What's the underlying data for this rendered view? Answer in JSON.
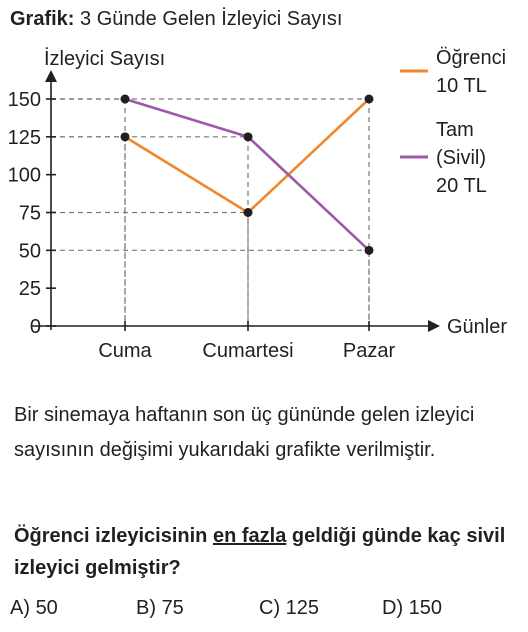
{
  "figure": {
    "title_prefix": "Grafik:",
    "title": "3 Günde Gelen İzleyici Sayısı"
  },
  "chart_data": {
    "type": "line",
    "ylabel": "İzleyici Sayısı",
    "xlabel": "Günler",
    "categories": [
      "Cuma",
      "Cumartesi",
      "Pazar"
    ],
    "yticks": [
      0,
      25,
      50,
      75,
      100,
      125,
      150
    ],
    "ylim": [
      0,
      150
    ],
    "grid": "dashed guide lines from points to axes",
    "legend_position": "right",
    "series": [
      {
        "name_lines": [
          "Öğrenci",
          "10 TL"
        ],
        "color": "#f0872a",
        "values": [
          125,
          75,
          150
        ]
      },
      {
        "name_lines": [
          "Tam",
          "(Sivil)",
          "20 TL"
        ],
        "color": "#9b59a8",
        "values": [
          150,
          125,
          50
        ]
      }
    ]
  },
  "question": {
    "text": "Bir sinemaya haftanın son üç gününde gelen izleyici sayısının değişimi yukarıdaki grafikte verilmiştir.",
    "prompt_before": "Öğrenci izleyicisinin ",
    "prompt_underlined": "en fazla",
    "prompt_after": " geldiği günde kaç sivil izleyici gelmiştir?",
    "choices": [
      {
        "label": "A)",
        "value": "50"
      },
      {
        "label": "B)",
        "value": "75"
      },
      {
        "label": "C)",
        "value": "125"
      },
      {
        "label": "D)",
        "value": "150"
      }
    ]
  }
}
